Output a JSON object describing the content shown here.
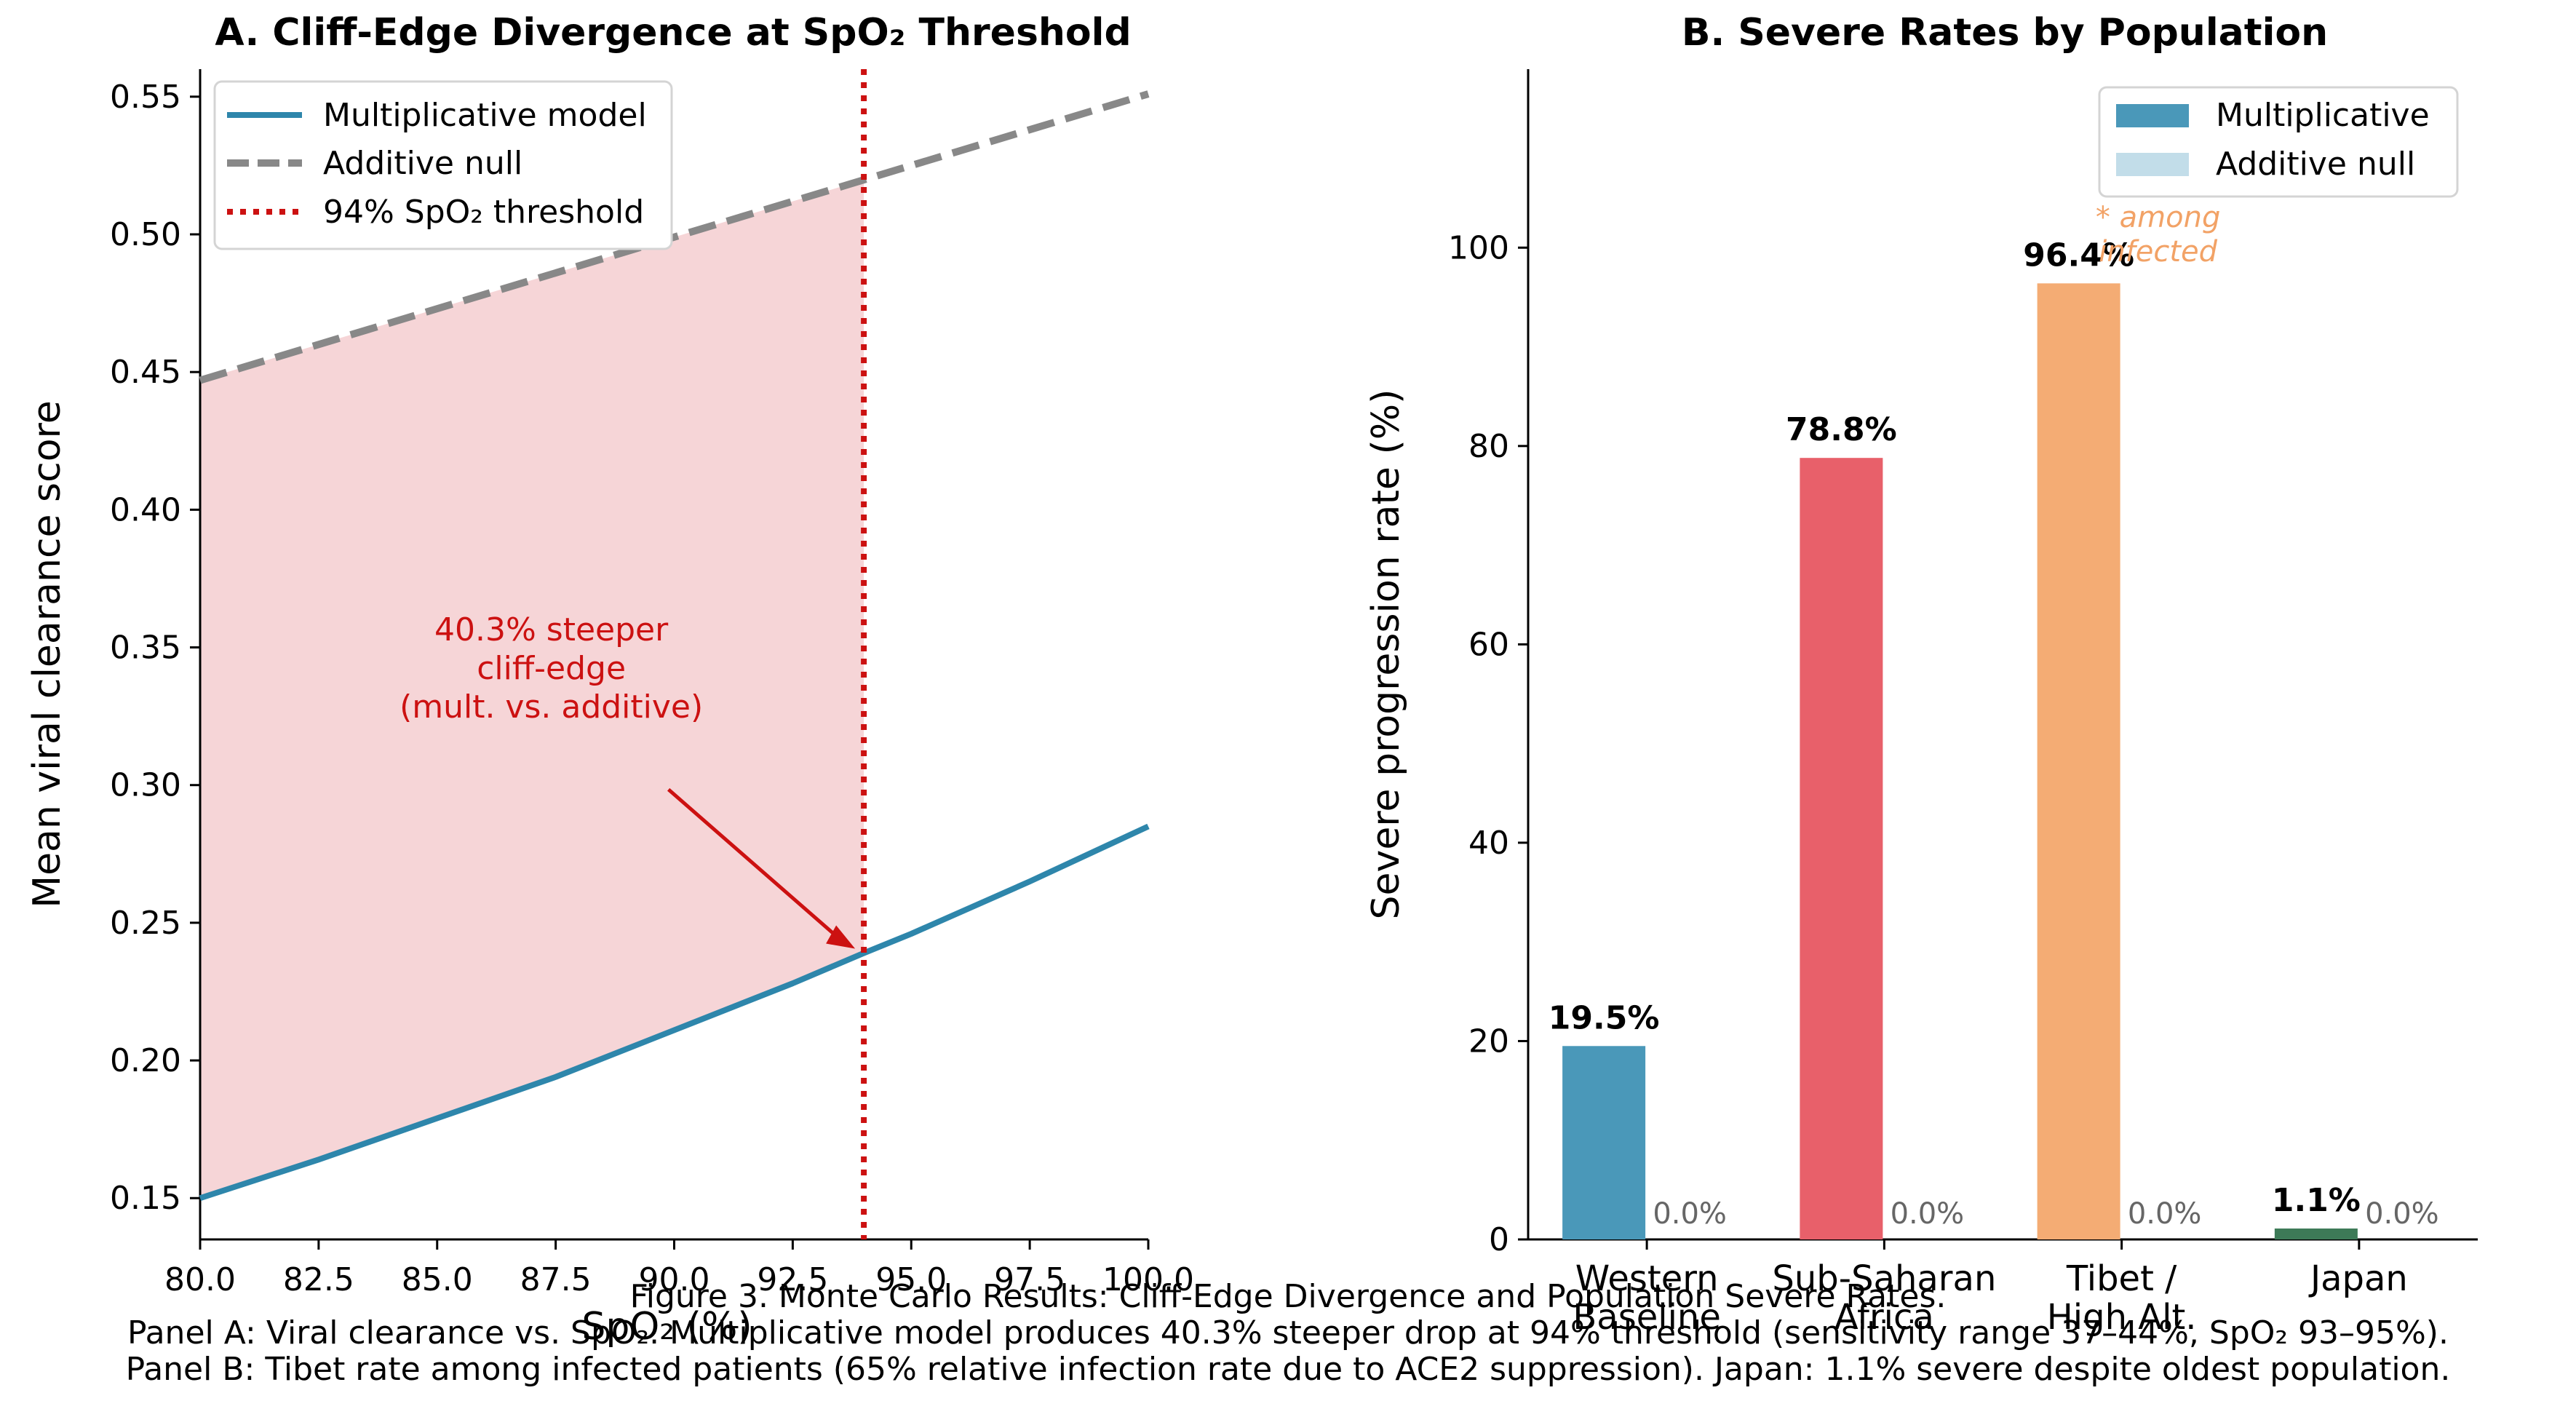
{
  "colors": {
    "multiplicative": "#2e86ab",
    "additive": "#888888",
    "threshold": "#cc1111",
    "shade": "#f5d0d3",
    "bar_western": "#4a98b9",
    "bar_ssa": "#e8606a",
    "bar_tibet": "#f4ac74",
    "bar_japan": "#3d7a57",
    "bar_additive": "#c2dde9",
    "note": "#f2a266"
  },
  "chart_data": [
    {
      "type": "line",
      "title": "A.  Cliff-Edge Divergence at SpO₂ Threshold",
      "xlabel": "SpO₂ (%)",
      "ylabel": "Mean viral clearance score",
      "xlim": [
        80,
        100
      ],
      "ylim": [
        0.135,
        0.56
      ],
      "xticks": [
        80,
        82.5,
        85,
        87.5,
        90,
        92.5,
        95,
        97.5,
        100
      ],
      "xtick_labels": [
        "80.0",
        "82.5",
        "85.0",
        "87.5",
        "90.0",
        "92.5",
        "95.0",
        "97.5",
        "100.0"
      ],
      "yticks": [
        0.15,
        0.2,
        0.25,
        0.3,
        0.35,
        0.4,
        0.45,
        0.5,
        0.55
      ],
      "ytick_labels": [
        "0.15",
        "0.20",
        "0.25",
        "0.30",
        "0.35",
        "0.40",
        "0.45",
        "0.50",
        "0.55"
      ],
      "series": [
        {
          "name": "Multiplicative model",
          "style": "solid",
          "x": [
            80,
            82.5,
            85,
            87.5,
            90,
            92.5,
            94,
            95,
            97.5,
            100
          ],
          "y": [
            0.15,
            0.164,
            0.179,
            0.194,
            0.211,
            0.228,
            0.239,
            0.246,
            0.265,
            0.285
          ]
        },
        {
          "name": "Additive null",
          "style": "dashed",
          "x": [
            80,
            100
          ],
          "y": [
            0.447,
            0.551
          ]
        },
        {
          "name": "94% SpO₂ threshold",
          "style": "dotted",
          "x_value": 94
        }
      ],
      "fill_between": {
        "x_from": 80,
        "x_to": 94
      },
      "annotation": {
        "lines": [
          "40.3% steeper",
          "cliff-edge",
          "(mult. vs. additive)"
        ],
        "text_at": [
          87.5,
          0.305
        ],
        "arrow_to": [
          94,
          0.239
        ]
      },
      "legend_position": "upper-left"
    },
    {
      "type": "bar",
      "title": "B.  Severe Rates by Population",
      "ylabel": "Severe progression rate (%)",
      "ylim": [
        0,
        118
      ],
      "yticks": [
        0,
        20,
        40,
        60,
        80,
        100
      ],
      "ytick_labels": [
        "0",
        "20",
        "40",
        "60",
        "80",
        "100"
      ],
      "categories": [
        [
          "Western",
          "Baseline"
        ],
        [
          "Sub-Saharan",
          "Africa"
        ],
        [
          "Tibet /",
          "High Alt."
        ],
        [
          "Japan"
        ]
      ],
      "series": [
        {
          "name": "Multiplicative",
          "values": [
            19.5,
            78.8,
            96.4,
            1.1
          ],
          "labels": [
            "19.5%",
            "78.8%",
            "96.4%",
            "1.1%"
          ]
        },
        {
          "name": "Additive null",
          "values": [
            0.0,
            0.0,
            0.0,
            0.0
          ],
          "labels": [
            "0.0%",
            "0.0%",
            "0.0%",
            "0.0%"
          ]
        }
      ],
      "note": {
        "lines": [
          "* among",
          "infected"
        ],
        "category_index": 2
      },
      "legend_position": "upper-right"
    }
  ],
  "caption": {
    "line1": "Figure 3.  Monte Carlo Results: Cliff-Edge Divergence and Population Severe Rates.",
    "line2": "Panel A: Viral clearance vs. SpO₂. Multiplicative model produces 40.3% steeper drop at 94% threshold (sensitivity range 37–44%, SpO₂ 93–95%).",
    "line3": "Panel B: Tibet rate among infected patients (65% relative infection rate due to ACE2 suppression). Japan: 1.1% severe despite oldest population."
  }
}
